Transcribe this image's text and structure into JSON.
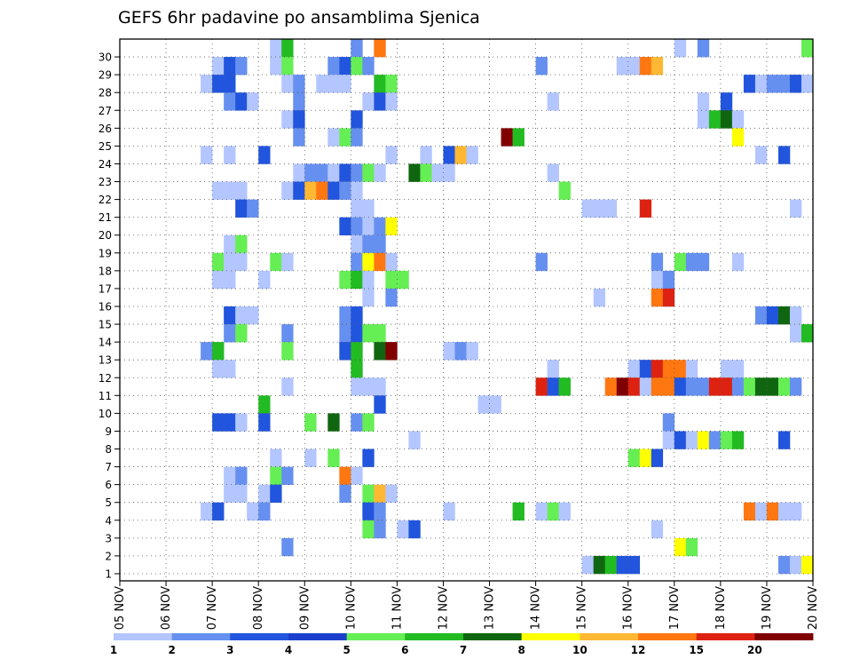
{
  "chart_data": {
    "type": "heatmap",
    "title": "GEFS 6hr padavine po ansamblima Sjenica",
    "xlabel": "",
    "ylabel": "",
    "x_tick_labels": [
      "05 NOV",
      "06 NOV",
      "07 NOV",
      "08 NOV",
      "09 NOV",
      "10 NOV",
      "11 NOV",
      "12 NOV",
      "13 NOV",
      "14 NOV",
      "15 NOV",
      "16 NOV",
      "17 NOV",
      "18 NOV",
      "19 NOV",
      "20 NOV"
    ],
    "y_tick_labels": [
      "1",
      "2",
      "3",
      "4",
      "5",
      "6",
      "7",
      "8",
      "9",
      "10",
      "11",
      "12",
      "13",
      "14",
      "15",
      "16",
      "17",
      "18",
      "19",
      "20",
      "21",
      "22",
      "23",
      "24",
      "25",
      "26",
      "27",
      "28",
      "29",
      "30"
    ],
    "xlim": [
      0,
      60
    ],
    "ylim": [
      0,
      30
    ],
    "grid": true,
    "colorbar": {
      "labels": [
        "1",
        "2",
        "3",
        "4",
        "5",
        "6",
        "7",
        "8",
        "10",
        "12",
        "15",
        "20"
      ],
      "colors": [
        "#b3c6ff",
        "#6690f0",
        "#2255dd",
        "#1a3fcc",
        "#66ee55",
        "#22bb22",
        "#106610",
        "#ffff00",
        "#ffb833",
        "#ff7711",
        "#dd2211",
        "#800000"
      ]
    },
    "cells_note": "[x_step, member_row, color_index] ; x_step = 6-hour step from 05 NOV 00Z, row 0 = below member 1",
    "cells": [
      [
        13,
        30,
        0
      ],
      [
        14,
        30,
        5
      ],
      [
        20,
        30,
        1
      ],
      [
        22,
        30,
        9
      ],
      [
        48,
        30,
        0
      ],
      [
        50,
        30,
        1
      ],
      [
        59,
        30,
        4
      ],
      [
        8,
        29,
        0
      ],
      [
        9,
        29,
        2
      ],
      [
        10,
        29,
        1
      ],
      [
        13,
        29,
        0
      ],
      [
        14,
        29,
        4
      ],
      [
        18,
        29,
        1
      ],
      [
        19,
        29,
        2
      ],
      [
        20,
        29,
        4
      ],
      [
        21,
        29,
        1
      ],
      [
        36,
        29,
        1
      ],
      [
        43,
        29,
        0
      ],
      [
        44,
        29,
        0
      ],
      [
        45,
        29,
        9
      ],
      [
        46,
        29,
        8
      ],
      [
        7,
        28,
        0
      ],
      [
        8,
        28,
        2
      ],
      [
        9,
        28,
        2
      ],
      [
        14,
        28,
        0
      ],
      [
        15,
        28,
        1
      ],
      [
        17,
        28,
        0
      ],
      [
        18,
        28,
        0
      ],
      [
        19,
        28,
        0
      ],
      [
        22,
        28,
        5
      ],
      [
        23,
        28,
        4
      ],
      [
        54,
        28,
        2
      ],
      [
        55,
        28,
        0
      ],
      [
        56,
        28,
        1
      ],
      [
        57,
        28,
        1
      ],
      [
        58,
        28,
        2
      ],
      [
        59,
        28,
        0
      ],
      [
        9,
        27,
        1
      ],
      [
        10,
        27,
        2
      ],
      [
        11,
        27,
        0
      ],
      [
        15,
        27,
        1
      ],
      [
        21,
        27,
        0
      ],
      [
        22,
        27,
        2
      ],
      [
        23,
        27,
        0
      ],
      [
        37,
        27,
        0
      ],
      [
        50,
        27,
        0
      ],
      [
        52,
        27,
        2
      ],
      [
        14,
        26,
        0
      ],
      [
        15,
        26,
        2
      ],
      [
        20,
        26,
        2
      ],
      [
        50,
        26,
        0
      ],
      [
        51,
        26,
        5
      ],
      [
        52,
        26,
        6
      ],
      [
        53,
        26,
        0
      ],
      [
        15,
        25,
        1
      ],
      [
        18,
        25,
        0
      ],
      [
        19,
        25,
        4
      ],
      [
        20,
        25,
        1
      ],
      [
        33,
        25,
        11
      ],
      [
        34,
        25,
        5
      ],
      [
        53,
        25,
        7
      ],
      [
        7,
        24,
        0
      ],
      [
        9,
        24,
        0
      ],
      [
        12,
        24,
        2
      ],
      [
        23,
        24,
        0
      ],
      [
        26,
        24,
        0
      ],
      [
        28,
        24,
        2
      ],
      [
        29,
        24,
        8
      ],
      [
        30,
        24,
        0
      ],
      [
        55,
        24,
        0
      ],
      [
        57,
        24,
        2
      ],
      [
        15,
        23,
        0
      ],
      [
        16,
        23,
        1
      ],
      [
        17,
        23,
        1
      ],
      [
        18,
        23,
        0
      ],
      [
        19,
        23,
        2
      ],
      [
        20,
        23,
        1
      ],
      [
        21,
        23,
        4
      ],
      [
        22,
        23,
        0
      ],
      [
        25,
        23,
        6
      ],
      [
        26,
        23,
        4
      ],
      [
        27,
        23,
        0
      ],
      [
        28,
        23,
        0
      ],
      [
        37,
        23,
        0
      ],
      [
        8,
        22,
        0
      ],
      [
        9,
        22,
        0
      ],
      [
        10,
        22,
        0
      ],
      [
        14,
        22,
        0
      ],
      [
        15,
        22,
        2
      ],
      [
        16,
        22,
        8
      ],
      [
        17,
        22,
        9
      ],
      [
        18,
        22,
        2
      ],
      [
        19,
        22,
        1
      ],
      [
        20,
        22,
        0
      ],
      [
        38,
        22,
        4
      ],
      [
        40,
        21,
        0
      ],
      [
        41,
        21,
        0
      ],
      [
        42,
        21,
        0
      ],
      [
        45,
        21,
        10
      ],
      [
        58,
        21,
        0
      ],
      [
        10,
        21,
        2
      ],
      [
        11,
        21,
        1
      ],
      [
        20,
        21,
        0
      ],
      [
        21,
        21,
        0
      ],
      [
        19,
        20,
        2
      ],
      [
        20,
        20,
        1
      ],
      [
        21,
        20,
        0
      ],
      [
        22,
        20,
        1
      ],
      [
        23,
        20,
        7
      ],
      [
        9,
        19,
        0
      ],
      [
        10,
        19,
        4
      ],
      [
        20,
        19,
        0
      ],
      [
        21,
        19,
        1
      ],
      [
        22,
        19,
        1
      ],
      [
        8,
        18,
        4
      ],
      [
        9,
        18,
        0
      ],
      [
        10,
        18,
        0
      ],
      [
        13,
        18,
        4
      ],
      [
        14,
        18,
        0
      ],
      [
        20,
        18,
        1
      ],
      [
        21,
        18,
        7
      ],
      [
        22,
        18,
        9
      ],
      [
        23,
        18,
        0
      ],
      [
        36,
        18,
        1
      ],
      [
        46,
        18,
        1
      ],
      [
        48,
        18,
        4
      ],
      [
        49,
        18,
        1
      ],
      [
        50,
        18,
        1
      ],
      [
        53,
        18,
        0
      ],
      [
        8,
        17,
        0
      ],
      [
        9,
        17,
        0
      ],
      [
        12,
        17,
        0
      ],
      [
        19,
        17,
        4
      ],
      [
        20,
        17,
        5
      ],
      [
        21,
        17,
        0
      ],
      [
        23,
        17,
        4
      ],
      [
        24,
        17,
        4
      ],
      [
        46,
        17,
        0
      ],
      [
        47,
        17,
        1
      ],
      [
        21,
        16,
        0
      ],
      [
        23,
        16,
        1
      ],
      [
        41,
        16,
        0
      ],
      [
        46,
        16,
        9
      ],
      [
        47,
        16,
        10
      ],
      [
        9,
        15,
        2
      ],
      [
        10,
        15,
        0
      ],
      [
        11,
        15,
        0
      ],
      [
        19,
        15,
        1
      ],
      [
        20,
        15,
        2
      ],
      [
        55,
        15,
        1
      ],
      [
        56,
        15,
        2
      ],
      [
        57,
        15,
        6
      ],
      [
        58,
        15,
        0
      ],
      [
        9,
        14,
        1
      ],
      [
        10,
        14,
        4
      ],
      [
        14,
        14,
        1
      ],
      [
        19,
        14,
        1
      ],
      [
        20,
        14,
        2
      ],
      [
        21,
        14,
        4
      ],
      [
        22,
        14,
        4
      ],
      [
        58,
        14,
        0
      ],
      [
        59,
        14,
        5
      ],
      [
        7,
        13,
        1
      ],
      [
        8,
        13,
        5
      ],
      [
        14,
        13,
        4
      ],
      [
        19,
        13,
        2
      ],
      [
        20,
        13,
        5
      ],
      [
        22,
        13,
        6
      ],
      [
        23,
        13,
        11
      ],
      [
        28,
        13,
        0
      ],
      [
        29,
        13,
        1
      ],
      [
        30,
        13,
        0
      ],
      [
        8,
        12,
        0
      ],
      [
        9,
        12,
        0
      ],
      [
        20,
        12,
        5
      ],
      [
        37,
        12,
        0
      ],
      [
        44,
        12,
        0
      ],
      [
        45,
        12,
        2
      ],
      [
        46,
        12,
        10
      ],
      [
        47,
        12,
        9
      ],
      [
        48,
        12,
        9
      ],
      [
        49,
        12,
        0
      ],
      [
        52,
        12,
        0
      ],
      [
        53,
        12,
        0
      ],
      [
        14,
        11,
        0
      ],
      [
        20,
        11,
        0
      ],
      [
        21,
        11,
        0
      ],
      [
        22,
        11,
        0
      ],
      [
        36,
        11,
        10
      ],
      [
        37,
        11,
        2
      ],
      [
        38,
        11,
        5
      ],
      [
        42,
        11,
        9
      ],
      [
        43,
        11,
        11
      ],
      [
        44,
        11,
        10
      ],
      [
        45,
        11,
        0
      ],
      [
        46,
        11,
        9
      ],
      [
        47,
        11,
        9
      ],
      [
        48,
        11,
        2
      ],
      [
        49,
        11,
        1
      ],
      [
        50,
        11,
        1
      ],
      [
        51,
        11,
        10
      ],
      [
        52,
        11,
        10
      ],
      [
        53,
        11,
        1
      ],
      [
        54,
        11,
        4
      ],
      [
        55,
        11,
        6
      ],
      [
        56,
        11,
        6
      ],
      [
        57,
        11,
        4
      ],
      [
        58,
        11,
        1
      ],
      [
        12,
        10,
        5
      ],
      [
        22,
        10,
        2
      ],
      [
        31,
        10,
        0
      ],
      [
        32,
        10,
        0
      ],
      [
        8,
        9,
        2
      ],
      [
        9,
        9,
        2
      ],
      [
        10,
        9,
        0
      ],
      [
        12,
        9,
        2
      ],
      [
        16,
        9,
        4
      ],
      [
        18,
        9,
        6
      ],
      [
        20,
        9,
        1
      ],
      [
        21,
        9,
        4
      ],
      [
        47,
        9,
        1
      ],
      [
        25,
        8,
        0
      ],
      [
        47,
        8,
        0
      ],
      [
        48,
        8,
        2
      ],
      [
        49,
        8,
        0
      ],
      [
        50,
        8,
        7
      ],
      [
        51,
        8,
        1
      ],
      [
        52,
        8,
        4
      ],
      [
        53,
        8,
        5
      ],
      [
        57,
        8,
        2
      ],
      [
        13,
        7,
        0
      ],
      [
        16,
        7,
        0
      ],
      [
        18,
        7,
        4
      ],
      [
        21,
        7,
        2
      ],
      [
        44,
        7,
        4
      ],
      [
        45,
        7,
        7
      ],
      [
        46,
        7,
        2
      ],
      [
        9,
        6,
        0
      ],
      [
        10,
        6,
        1
      ],
      [
        13,
        6,
        4
      ],
      [
        14,
        6,
        1
      ],
      [
        19,
        6,
        9
      ],
      [
        20,
        6,
        0
      ],
      [
        9,
        5,
        0
      ],
      [
        10,
        5,
        0
      ],
      [
        12,
        5,
        0
      ],
      [
        13,
        5,
        2
      ],
      [
        19,
        5,
        1
      ],
      [
        21,
        5,
        4
      ],
      [
        22,
        5,
        8
      ],
      [
        23,
        5,
        0
      ],
      [
        7,
        4,
        0
      ],
      [
        8,
        4,
        2
      ],
      [
        11,
        4,
        0
      ],
      [
        12,
        4,
        1
      ],
      [
        21,
        4,
        2
      ],
      [
        22,
        4,
        1
      ],
      [
        28,
        4,
        0
      ],
      [
        34,
        4,
        5
      ],
      [
        36,
        4,
        0
      ],
      [
        37,
        4,
        4
      ],
      [
        38,
        4,
        0
      ],
      [
        54,
        4,
        9
      ],
      [
        55,
        4,
        0
      ],
      [
        56,
        4,
        9
      ],
      [
        57,
        4,
        0
      ],
      [
        58,
        4,
        0
      ],
      [
        21,
        3,
        4
      ],
      [
        22,
        3,
        1
      ],
      [
        24,
        3,
        0
      ],
      [
        25,
        3,
        2
      ],
      [
        46,
        3,
        0
      ],
      [
        14,
        2,
        1
      ],
      [
        48,
        2,
        7
      ],
      [
        49,
        2,
        4
      ],
      [
        40,
        1,
        0
      ],
      [
        41,
        1,
        6
      ],
      [
        42,
        1,
        5
      ],
      [
        43,
        1,
        2
      ],
      [
        44,
        1,
        2
      ],
      [
        57,
        1,
        1
      ],
      [
        58,
        1,
        0
      ],
      [
        59,
        1,
        7
      ]
    ]
  }
}
